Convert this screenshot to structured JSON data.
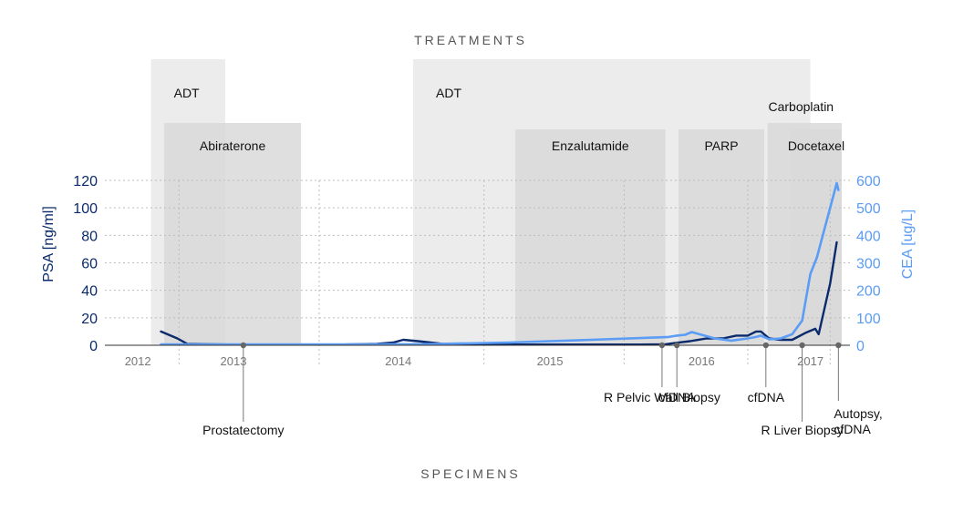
{
  "chart_data": {
    "type": "line",
    "treatments_title": "TREATMENTS",
    "specimens_title": "SPECIMENS",
    "ylabel_left": "PSA [ng/ml]",
    "ylabel_right": "CEA [ug/L]",
    "ylim_left": [
      0,
      120
    ],
    "ylim_right": [
      0,
      600
    ],
    "yticks_left": [
      "0",
      "20",
      "40",
      "60",
      "80",
      "100",
      "120"
    ],
    "yticks_right": [
      "0",
      "100",
      "200",
      "300",
      "400",
      "500",
      "600"
    ],
    "year_ticks": [
      {
        "label": "2012",
        "t": 2011.75
      },
      {
        "label": "2013",
        "t": 2012.33
      },
      {
        "label": "2014",
        "t": 2013.33
      },
      {
        "label": "2015",
        "t": 2014.25
      },
      {
        "label": "2016",
        "t": 2015.17
      },
      {
        "label": "2017",
        "t": 2015.83
      }
    ],
    "treatments": [
      {
        "label": "ADT",
        "start": 2011.83,
        "end": 2012.28,
        "row": 0
      },
      {
        "label": "Abiraterone",
        "start": 2011.91,
        "end": 2012.74,
        "row": 1
      },
      {
        "label": "ADT",
        "start": 2013.42,
        "end": 2015.83,
        "row": 0
      },
      {
        "label": "Enzalutamide",
        "start": 2014.04,
        "end": 2014.95,
        "row": 2
      },
      {
        "label": "PARP",
        "start": 2015.03,
        "end": 2015.55,
        "row": 2
      },
      {
        "label": "Carboplatin",
        "start": 2015.57,
        "end": 2016.02,
        "row": 1
      },
      {
        "label": "Docetaxel",
        "start": 2015.71,
        "end": 2016.02,
        "row": 2
      }
    ],
    "specimens": [
      {
        "label": "Prostatectomy",
        "t": 2012.39
      },
      {
        "label": "R Pelvic Wall Biopsy",
        "t": 2014.93
      },
      {
        "label": "cfDNA",
        "t": 2015.02
      },
      {
        "label": "cfDNA",
        "t": 2015.56
      },
      {
        "label": "R Liver Biopsy",
        "t": 2015.78
      },
      {
        "label": "Autopsy, cfDNA",
        "t": 2016.0
      }
    ],
    "series": [
      {
        "name": "PSA",
        "color": "#0a2a6b",
        "axis": "left",
        "x": [
          2011.89,
          2011.99,
          2012.05,
          2012.3,
          2012.6,
          2013.0,
          2013.2,
          2013.3,
          2013.36,
          2013.45,
          2013.6,
          2013.9,
          2014.2,
          2014.5,
          2014.8,
          2014.95,
          2015.0,
          2015.1,
          2015.2,
          2015.3,
          2015.38,
          2015.45,
          2015.5,
          2015.53,
          2015.58,
          2015.65,
          2015.72,
          2015.8,
          2015.84,
          2015.86,
          2015.88,
          2015.95,
          2015.99
        ],
        "values": [
          10,
          5,
          1,
          0.5,
          0.5,
          0.5,
          1,
          2,
          4,
          3,
          1,
          0.5,
          0.5,
          0.5,
          0.5,
          0.7,
          1.5,
          3,
          5,
          5,
          7,
          7,
          10,
          10,
          5,
          4,
          4,
          9,
          11,
          12,
          8,
          45,
          75
        ]
      },
      {
        "name": "CEA",
        "color": "#5b9cf5",
        "axis": "right",
        "x": [
          2011.89,
          2012.1,
          2012.5,
          2013.0,
          2013.5,
          2014.0,
          2014.5,
          2014.97,
          2015.02,
          2015.07,
          2015.11,
          2015.17,
          2015.25,
          2015.35,
          2015.45,
          2015.5,
          2015.53,
          2015.58,
          2015.65,
          2015.72,
          2015.78,
          2015.83,
          2015.87,
          2015.99,
          2016.0
        ],
        "values": [
          3,
          3,
          3,
          3,
          4,
          10,
          20,
          30,
          35,
          38,
          48,
          38,
          25,
          17,
          25,
          30,
          35,
          22,
          25,
          40,
          90,
          260,
          320,
          590,
          565
        ]
      }
    ]
  }
}
